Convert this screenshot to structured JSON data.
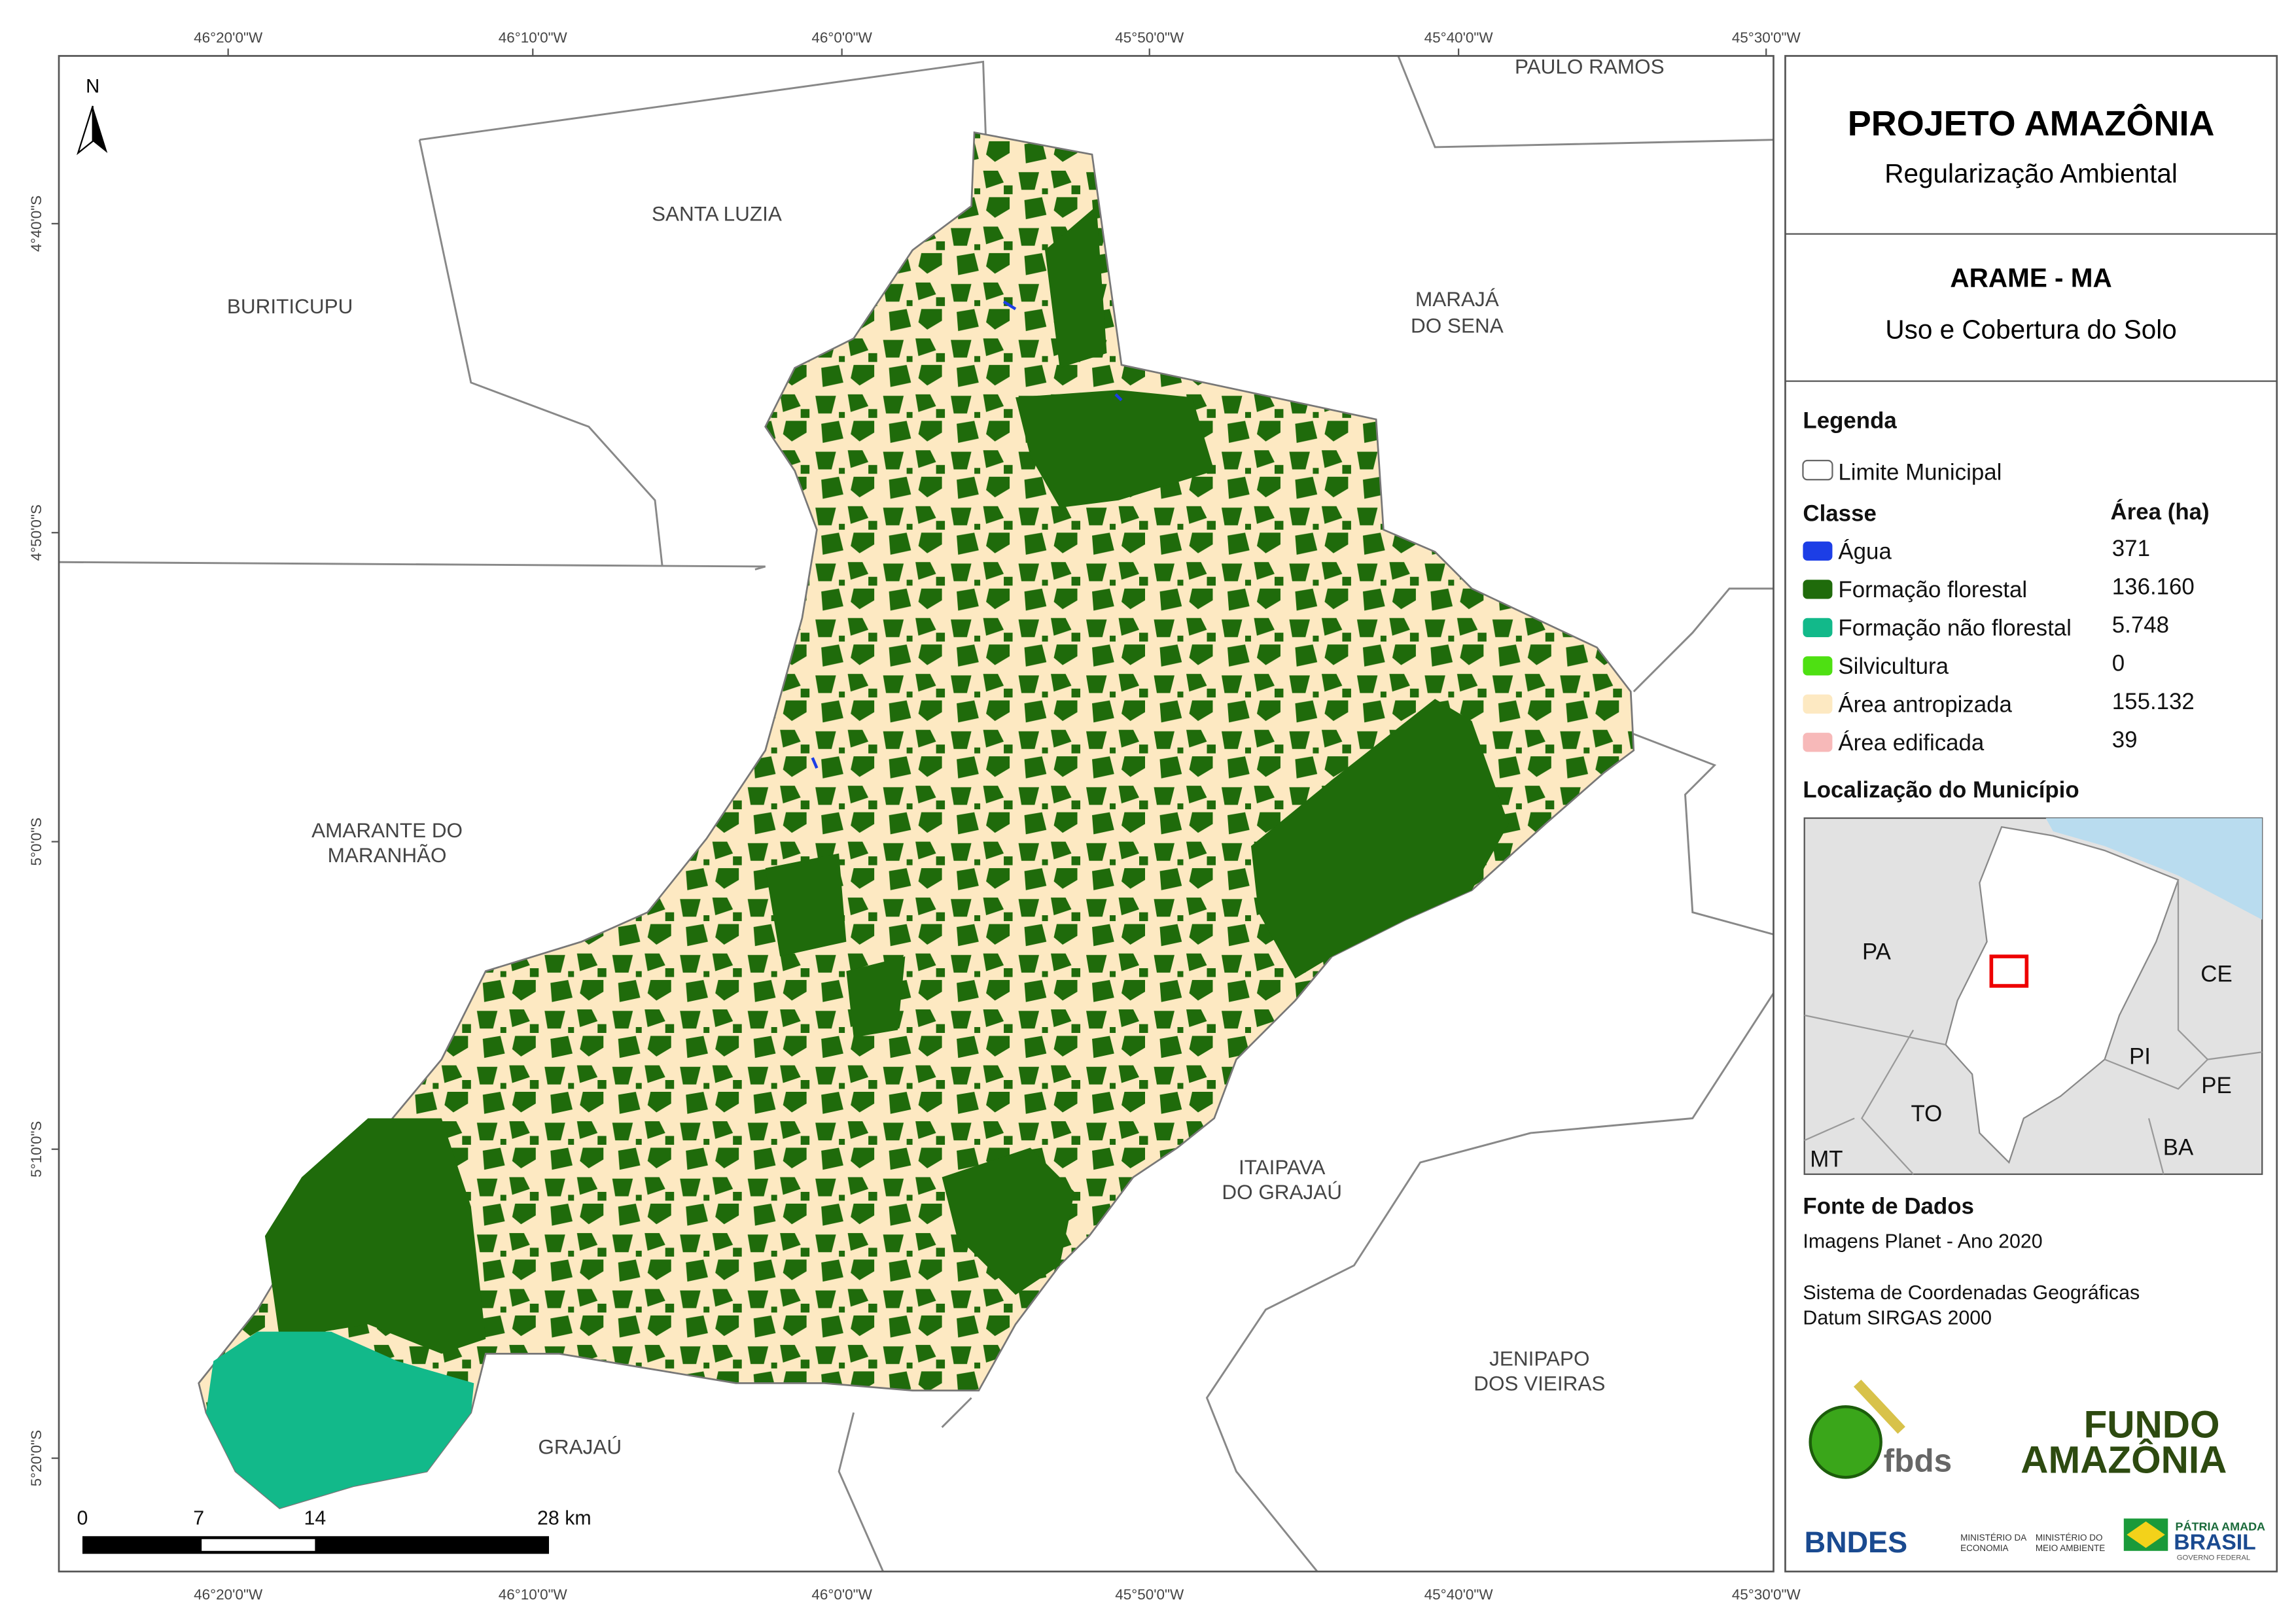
{
  "header": {
    "title": "PROJETO AMAZÔNIA",
    "subtitle": "Regularização Ambiental"
  },
  "map_title": {
    "title": "ARAME - MA",
    "subtitle": "Uso e Cobertura do Solo"
  },
  "legend": {
    "title": "Legenda",
    "boundary": "Limite Municipal",
    "class_header": "Classe",
    "area_header": "Área (ha)",
    "classes": [
      {
        "name": "Água",
        "color": "#1c3ee6",
        "area": "371"
      },
      {
        "name": "Formação florestal",
        "color": "#1f6b0b",
        "area": "136.160"
      },
      {
        "name": "Formação não florestal",
        "color": "#12b98a",
        "area": "5.748"
      },
      {
        "name": "Silvicultura",
        "color": "#4ee012",
        "area": "0"
      },
      {
        "name": "Área antropizada",
        "color": "#fde9c2",
        "area": "155.132"
      },
      {
        "name": "Área edificada",
        "color": "#f7b9b9",
        "area": "39"
      }
    ]
  },
  "locator": {
    "title": "Localização do Município",
    "labels": [
      "PA",
      "CE",
      "PI",
      "PE",
      "TO",
      "BA",
      "MT"
    ]
  },
  "sources": {
    "title": "Fonte de Dados",
    "lines": [
      "Imagens Planet - Ano 2020",
      "Sistema de Coordenadas Geográficas",
      "Datum SIRGAS 2000"
    ]
  },
  "logos": {
    "fbds": "fbds",
    "fundo": "FUNDO",
    "amazonia": "AMAZÔNIA",
    "bndes": "BNDES",
    "min_economia": [
      "MINISTÉRIO DA",
      "ECONOMIA"
    ],
    "min_ambiente": [
      "MINISTÉRIO DO",
      "MEIO AMBIENTE"
    ],
    "patria": "PÁTRIA AMADA",
    "brasil": "BRASIL",
    "governo": "GOVERNO FEDERAL"
  },
  "map": {
    "north": "N",
    "places": [
      [
        "BURITICUPU"
      ],
      [
        "SANTA LUZIA"
      ],
      [
        "MARAJÁ",
        "DO SENA"
      ],
      [
        "PAULO RAMOS"
      ],
      [
        "AMARANTE DO",
        "MARANHÃO"
      ],
      [
        "ITAIPAVA",
        "DO GRAJAÚ"
      ],
      [
        "JENIPAPO",
        "DOS VIEIRAS"
      ],
      [
        "GRAJAÚ"
      ]
    ],
    "lon_labels": [
      "46°20'0\"W",
      "46°10'0\"W",
      "46°0'0\"W",
      "45°50'0\"W",
      "45°40'0\"W",
      "45°30'0\"W"
    ],
    "lat_labels": [
      "4°40'0\"S",
      "4°50'0\"S",
      "5°0'0\"S",
      "5°10'0\"S",
      "5°20'0\"S"
    ],
    "scale_labels": [
      "0",
      "7",
      "14",
      "28 km"
    ]
  }
}
